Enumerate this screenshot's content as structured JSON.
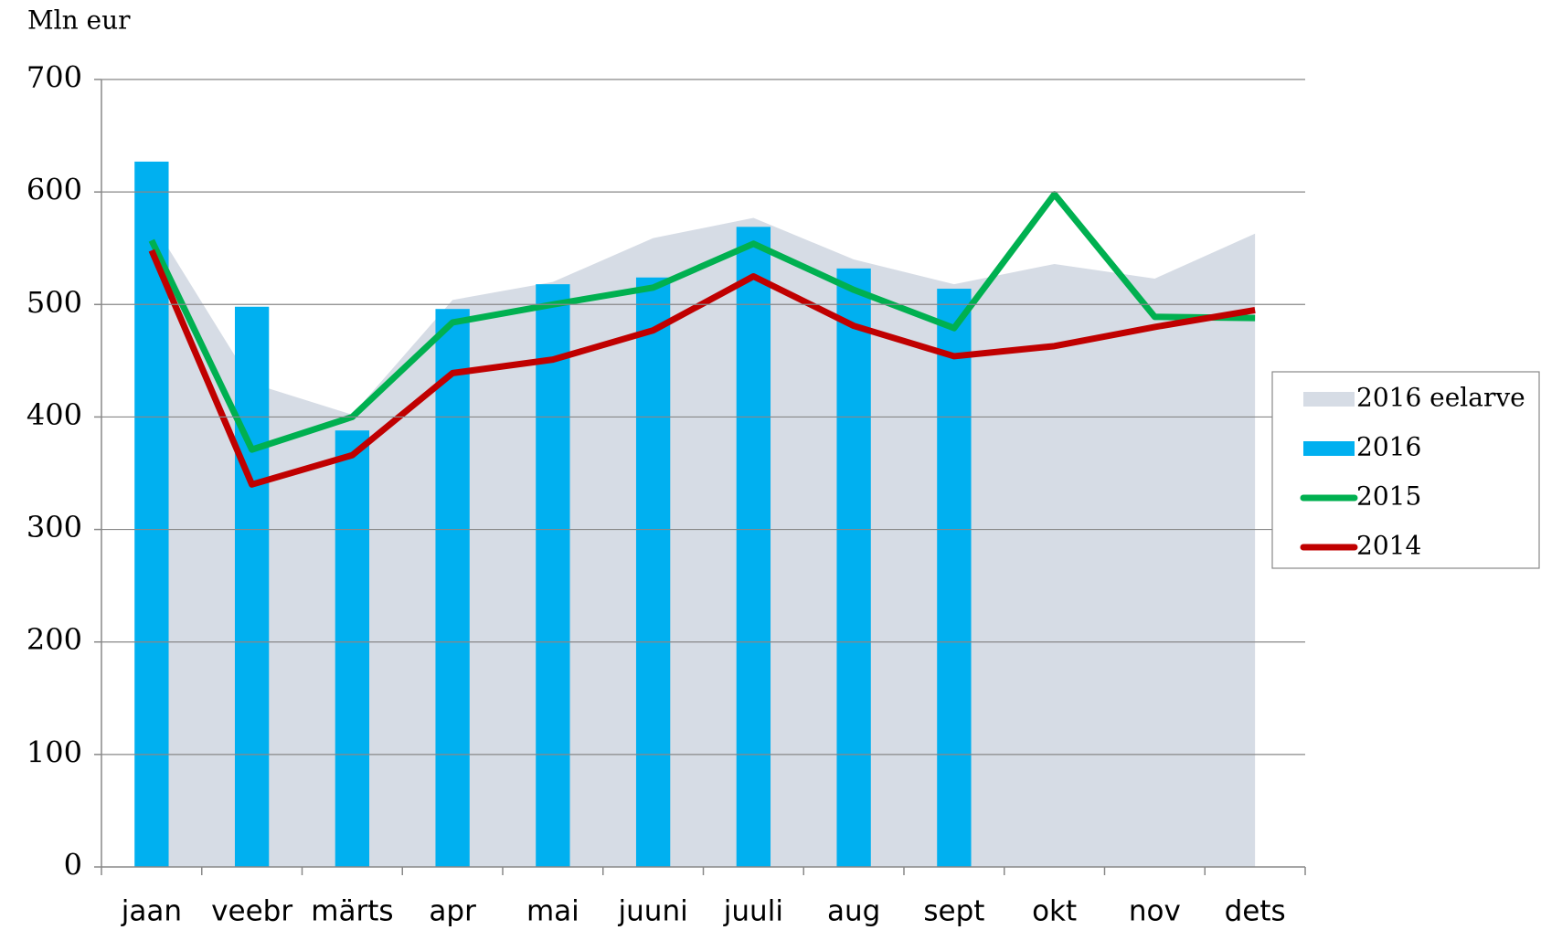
{
  "chart_data": {
    "type": "bar",
    "y_label": "Mln eur",
    "categories": [
      "jaan",
      "veebr",
      "märts",
      "apr",
      "mai",
      "juuni",
      "juuli",
      "aug",
      "sept",
      "okt",
      "nov",
      "dets"
    ],
    "series": [
      {
        "name": "2016 eelarve",
        "type": "area",
        "color": "#d6dce5",
        "values": [
          574,
          430,
          402,
          504,
          520,
          559,
          577,
          540,
          518,
          536,
          523,
          563
        ]
      },
      {
        "name": "2016",
        "type": "bar",
        "color": "#00b0f0",
        "values": [
          627,
          498,
          388,
          496,
          518,
          524,
          569,
          532,
          514,
          null,
          null,
          null
        ]
      },
      {
        "name": "2015",
        "type": "line",
        "color": "#00b050",
        "values": [
          557,
          371,
          400,
          484,
          500,
          515,
          554,
          513,
          479,
          598,
          489,
          488
        ]
      },
      {
        "name": "2014",
        "type": "line",
        "color": "#c00000",
        "values": [
          548,
          340,
          366,
          439,
          451,
          477,
          525,
          481,
          454,
          463,
          480,
          495
        ]
      }
    ],
    "ylim": [
      0,
      700
    ],
    "yticks": [
      0,
      100,
      200,
      300,
      400,
      500,
      600,
      700
    ],
    "grid": true,
    "legend": "right"
  }
}
